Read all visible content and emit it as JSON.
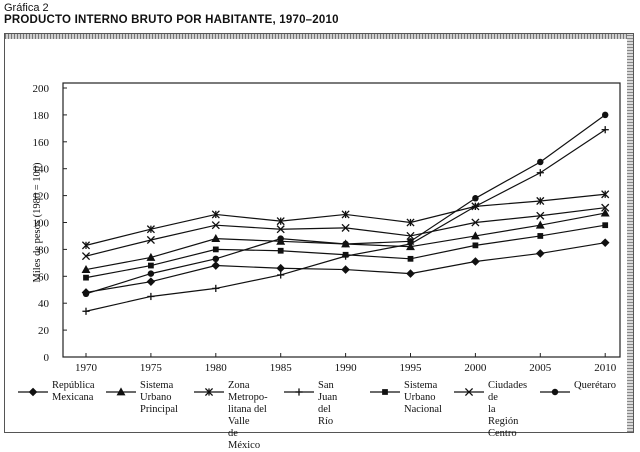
{
  "caption": "Gráfica 2",
  "title": "PRODUCTO INTERNO BRUTO POR HABITANTE, 1970–2010",
  "chart_data": {
    "type": "line",
    "title": "PRODUCTO INTERNO BRUTO POR HABITANTE, 1970–2010",
    "ylabel": "Miles de pesos (1980 = 100)",
    "xlabel": "",
    "ylim": [
      0,
      200
    ],
    "yticks": [
      "0",
      "20",
      "40",
      "60",
      "80",
      "100",
      "120",
      "140",
      "160",
      "180",
      "200"
    ],
    "categories": [
      "1970",
      "1975",
      "1980",
      "1985",
      "1990",
      "1995",
      "2000",
      "2005",
      "2010"
    ],
    "grid": false,
    "legend_position": "bottom",
    "series": [
      {
        "name": "República Mexicana",
        "marker": "diamond",
        "values": [
          48,
          56,
          68,
          66,
          65,
          62,
          71,
          77,
          85
        ]
      },
      {
        "name": "Sistema Urbano Principal",
        "marker": "triangle",
        "values": [
          65,
          74,
          88,
          86,
          84,
          82,
          90,
          98,
          107
        ]
      },
      {
        "name": "Zona Metropolitana del Valle de México",
        "marker": "asterisk",
        "values": [
          83,
          95,
          106,
          101,
          106,
          100,
          112,
          116,
          121
        ]
      },
      {
        "name": "San Juan del Río",
        "marker": "plus",
        "values": [
          34,
          45,
          51,
          61,
          75,
          84,
          112,
          137,
          169
        ]
      },
      {
        "name": "Sistema Urbano Nacional",
        "marker": "square",
        "values": [
          59,
          68,
          80,
          79,
          76,
          73,
          83,
          90,
          98
        ]
      },
      {
        "name": "Ciudades de la Región Centro",
        "marker": "x",
        "values": [
          75,
          87,
          98,
          95,
          96,
          90,
          100,
          105,
          111
        ]
      },
      {
        "name": "Querétaro",
        "marker": "circle",
        "values": [
          47,
          62,
          73,
          88,
          84,
          86,
          118,
          145,
          180
        ]
      }
    ]
  },
  "legend": [
    {
      "marker": "diamond",
      "label": "República\nMexicana"
    },
    {
      "marker": "triangle",
      "label": "Sistema\nUrbano\nPrincipal"
    },
    {
      "marker": "asterisk",
      "label": "Zona Metropo-\nlitana del Valle\nde México"
    },
    {
      "marker": "plus",
      "label": "San Juan\ndel Río"
    },
    {
      "marker": "square",
      "label": "Sistema\nUrbano\nNacional"
    },
    {
      "marker": "x",
      "label": "Ciudades de\nla Región\nCentro"
    },
    {
      "marker": "circle",
      "label": "Querétaro"
    }
  ]
}
